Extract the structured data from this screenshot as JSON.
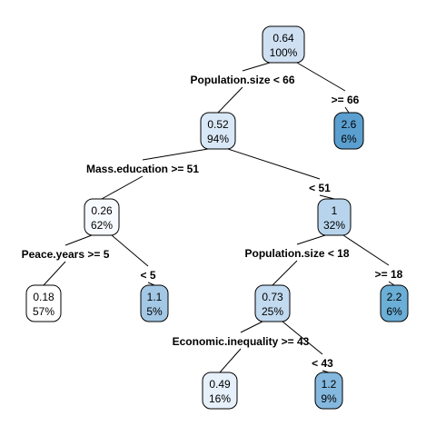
{
  "tree": {
    "nodes": [
      {
        "id": "n1",
        "value": "0.64",
        "percent": "100%",
        "fill": "#cfe0f3"
      },
      {
        "id": "n2",
        "value": "0.52",
        "percent": "94%",
        "fill": "#d9e8f6"
      },
      {
        "id": "n3",
        "value": "2.6",
        "percent": "6%",
        "fill": "#5b9fd0"
      },
      {
        "id": "n4",
        "value": "0.26",
        "percent": "62%",
        "fill": "#f7fbff"
      },
      {
        "id": "n5",
        "value": "1",
        "percent": "32%",
        "fill": "#b7d4ec"
      },
      {
        "id": "n6",
        "value": "0.18",
        "percent": "57%",
        "fill": "#ffffff"
      },
      {
        "id": "n7",
        "value": "1.1",
        "percent": "5%",
        "fill": "#a3c8e6"
      },
      {
        "id": "n8",
        "value": "0.73",
        "percent": "25%",
        "fill": "#c2daef"
      },
      {
        "id": "n9",
        "value": "2.2",
        "percent": "6%",
        "fill": "#6baed6"
      },
      {
        "id": "n10",
        "value": "0.49",
        "percent": "16%",
        "fill": "#e6f0fa"
      },
      {
        "id": "n11",
        "value": "1.2",
        "percent": "9%",
        "fill": "#84b8de"
      }
    ],
    "splits": [
      {
        "id": "s1",
        "text": "Population.size < 66"
      },
      {
        "id": "s2",
        "text": ">= 66"
      },
      {
        "id": "s3",
        "text": "Mass.education >= 51"
      },
      {
        "id": "s4",
        "text": "< 51"
      },
      {
        "id": "s5",
        "text": "Peace.years >= 5"
      },
      {
        "id": "s6",
        "text": "< 5"
      },
      {
        "id": "s7",
        "text": "Population.size < 18"
      },
      {
        "id": "s8",
        "text": ">= 18"
      },
      {
        "id": "s9",
        "text": "Economic.inequality >= 43"
      },
      {
        "id": "s10",
        "text": "< 43"
      }
    ]
  }
}
